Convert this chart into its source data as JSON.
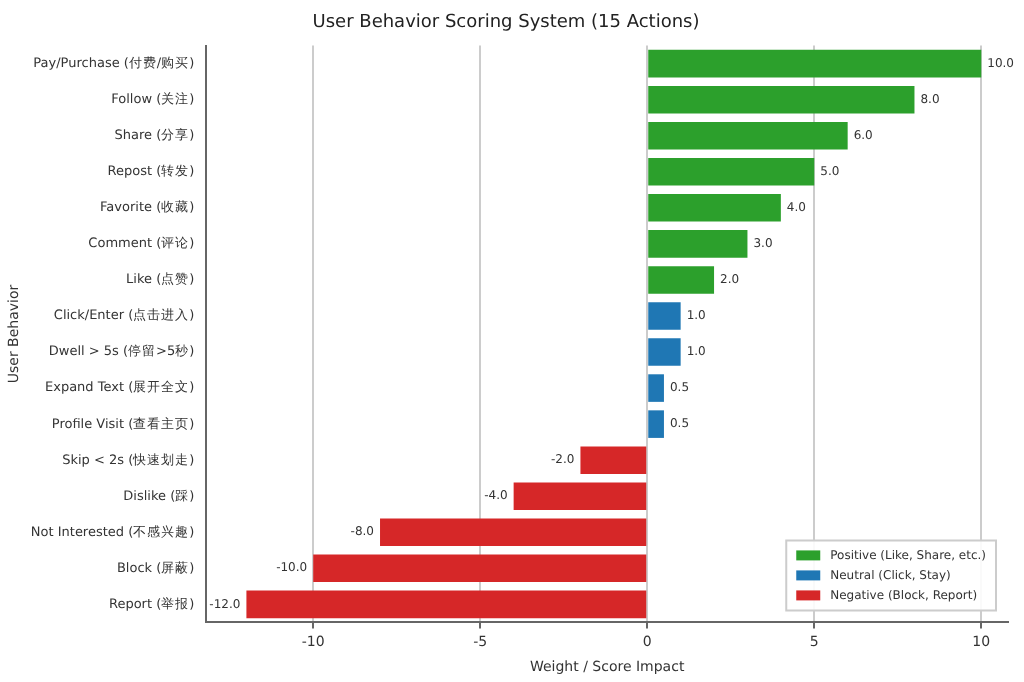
{
  "chart_data": {
    "type": "bar",
    "orientation": "horizontal",
    "title": "User Behavior Scoring System (15 Actions)",
    "xlabel": "Weight / Score Impact",
    "ylabel": "User Behavior",
    "categories": [
      "Pay/Purchase (付费/购买)",
      "Follow (关注)",
      "Share (分享)",
      "Repost (转发)",
      "Favorite (收藏)",
      "Comment (评论)",
      "Like (点赞)",
      "Click/Enter (点击进入)",
      "Dwell > 5s (停留>5秒)",
      "Expand Text (展开全文)",
      "Profile Visit (查看主页)",
      "Skip < 2s (快速划走)",
      "Dislike (踩)",
      "Not Interested (不感兴趣)",
      "Block (屏蔽)",
      "Report (举报)"
    ],
    "series": [
      {
        "name": "Positive (Like, Share, etc.)",
        "color": "#2ca02c",
        "values": [
          10,
          8,
          6,
          5,
          4,
          3,
          2,
          null,
          null,
          null,
          null,
          null,
          null,
          null,
          null,
          null
        ],
        "value_labels": [
          "10.0",
          "8.0",
          "6.0",
          "5.0",
          "4.0",
          "3.0",
          "2.0",
          null,
          null,
          null,
          null,
          null,
          null,
          null,
          null,
          null
        ]
      },
      {
        "name": "Neutral (Click, Stay)",
        "color": "#1f77b4",
        "values": [
          null,
          null,
          null,
          null,
          null,
          null,
          null,
          1,
          1,
          0.5,
          0.5,
          null,
          null,
          null,
          null,
          null
        ],
        "value_labels": [
          null,
          null,
          null,
          null,
          null,
          null,
          null,
          "1.0",
          "1.0",
          "0.5",
          "0.5",
          null,
          null,
          null,
          null,
          null
        ]
      },
      {
        "name": "Negative (Block, Report)",
        "color": "#d62728",
        "values": [
          null,
          null,
          null,
          null,
          null,
          null,
          null,
          null,
          null,
          null,
          null,
          -2,
          -4,
          -8,
          -10,
          -12
        ],
        "value_labels": [
          null,
          null,
          null,
          null,
          null,
          null,
          null,
          null,
          null,
          null,
          null,
          "-2.0",
          "-4.0",
          "-8.0",
          "-10.0",
          "-12.0"
        ]
      }
    ],
    "xlim": [
      -13.2,
      10.8
    ],
    "xticks": [
      -10,
      -5,
      0,
      5,
      10
    ],
    "grid": "x",
    "legend": "bottom right"
  }
}
